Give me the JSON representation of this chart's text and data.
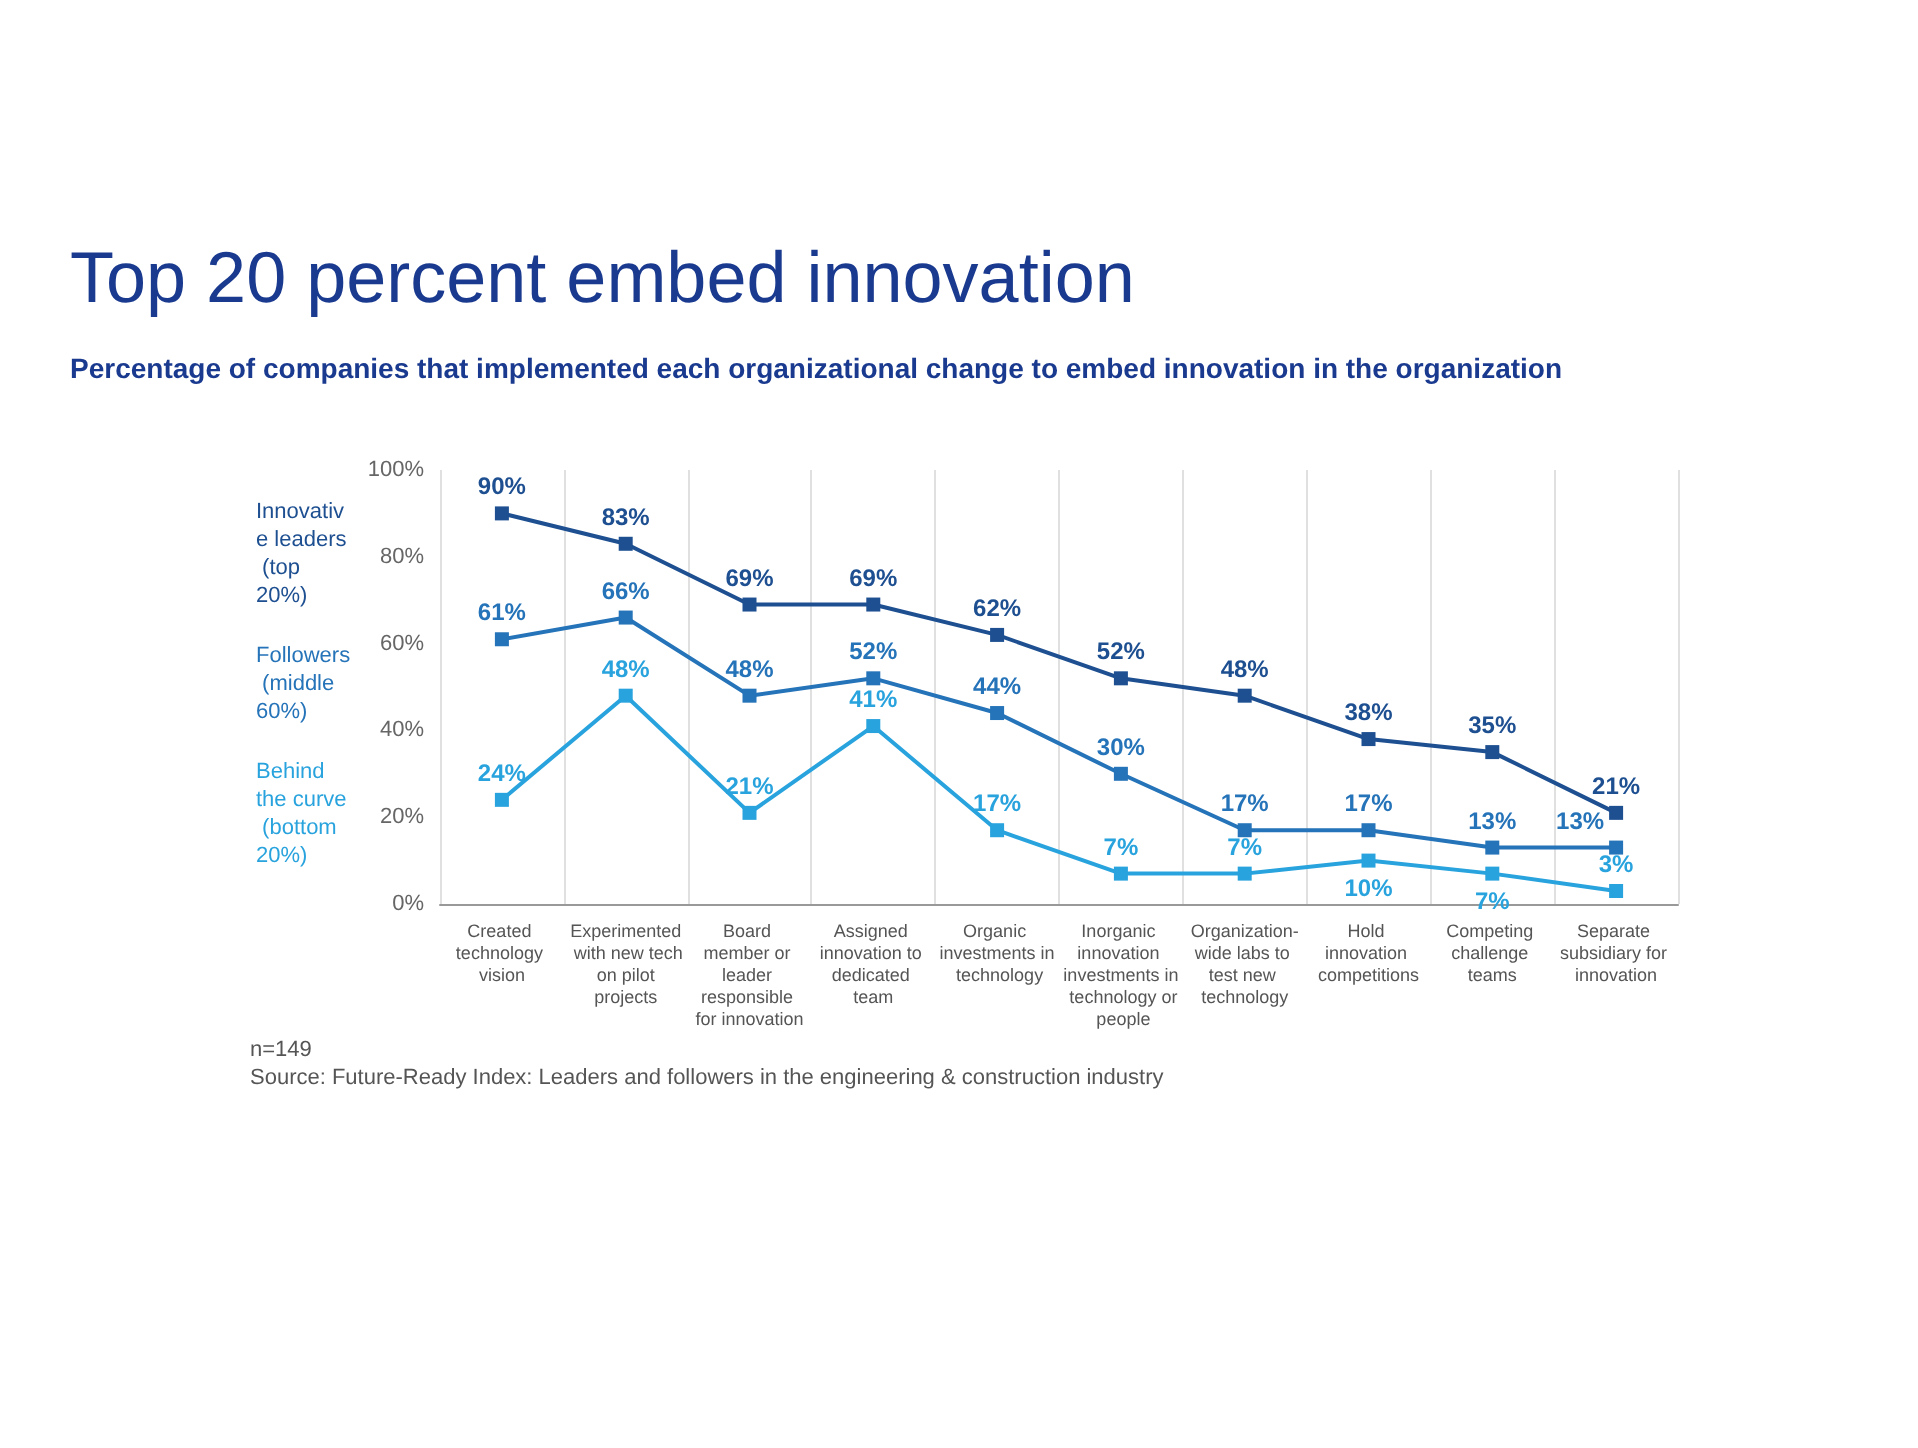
{
  "chart_data": {
    "type": "line",
    "title": "Top 20 percent embed innovation",
    "subtitle": "Percentage of companies that implemented each organizational change to embed innovation in the organization",
    "categories": [
      "Created technology vision",
      "Experimented with new tech on pilot projects",
      "Board member or leader responsible for innovation",
      "Assigned innovation to dedicated team",
      "Organic investments in technology",
      "Inorganic innovation investments in technology or people",
      "Organization-wide labs to test new technology",
      "Hold innovation competitions",
      "Competing challenge teams",
      "Separate subsidiary for innovation"
    ],
    "series": [
      {
        "name": "Innovative leaders (top 20%)",
        "color": "#1d4f91",
        "values": [
          90,
          83,
          69,
          69,
          62,
          52,
          48,
          38,
          35,
          21
        ],
        "value_labels": [
          "90%",
          "83%",
          "69%",
          "69%",
          "62%",
          "52%",
          "48%",
          "38%",
          "35%",
          "21%"
        ]
      },
      {
        "name": "Followers (middle 60%)",
        "color": "#2573b8",
        "values": [
          61,
          66,
          48,
          52,
          44,
          30,
          17,
          17,
          13,
          13
        ],
        "value_labels": [
          "61%",
          "66%",
          "48%",
          "52%",
          "44%",
          "30%",
          "17%",
          "17%",
          "13%",
          "13%"
        ]
      },
      {
        "name": "Behind the curve (bottom 20%)",
        "color": "#29a3dd",
        "values": [
          24,
          48,
          21,
          41,
          17,
          7,
          7,
          10,
          7,
          3
        ],
        "value_labels": [
          "24%",
          "48%",
          "21%",
          "41%",
          "17%",
          "7%",
          "7%",
          "10%",
          "7%",
          "3%"
        ]
      }
    ],
    "ylim": [
      0,
      100
    ],
    "yticks": [
      {
        "value": 0,
        "label": "0%"
      },
      {
        "value": 20,
        "label": "20%"
      },
      {
        "value": 40,
        "label": "40%"
      },
      {
        "value": 60,
        "label": "60%"
      },
      {
        "value": 80,
        "label": "80%"
      },
      {
        "value": 100,
        "label": "100%"
      }
    ],
    "grid": "x",
    "legend": "left",
    "marker": "square",
    "line_style": "solid",
    "annotations": [
      "n=149",
      "Source: Future-Ready Index: Leaders and followers in the engineering & construction industry"
    ]
  }
}
